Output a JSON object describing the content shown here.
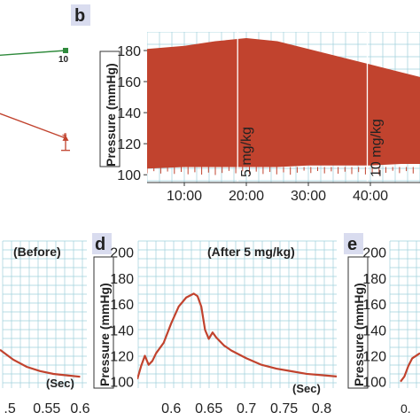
{
  "colors": {
    "trace": "#c1432e",
    "grid": "#9fd0dc",
    "green_series": "#2f8a3c",
    "badge_bg": "#d9dcef",
    "axis": "#333333"
  },
  "chart_data": [
    {
      "id": "panel-a",
      "type": "line",
      "series": [
        {
          "color": "#2f8a3c",
          "x": [
            0,
            10
          ],
          "y": [
            0.95,
            1.0
          ]
        },
        {
          "color": "#c1432e",
          "x": [
            0,
            10
          ],
          "y": [
            0.4,
            0.14
          ],
          "errbar": {
            "x": 10,
            "low": 0.02,
            "high": 0.19
          }
        }
      ],
      "tick_labels": [
        "10"
      ],
      "annotations": [
        "*"
      ]
    },
    {
      "id": "panel-b",
      "type": "area",
      "panel_label": "b",
      "ylabel": "Pressure (mmHg)",
      "yticks": [
        100,
        120,
        140,
        160,
        180
      ],
      "ylim": [
        95,
        192
      ],
      "xticks": [
        "10:00",
        "20:00",
        "30:00",
        "40:00"
      ],
      "xlim_min": [
        4,
        48
      ],
      "xtick_min": [
        10,
        20,
        30,
        40
      ],
      "upper_envelope": [
        [
          4,
          181
        ],
        [
          10,
          183
        ],
        [
          15,
          186
        ],
        [
          20,
          188
        ],
        [
          25,
          186
        ],
        [
          30,
          181
        ],
        [
          35,
          176
        ],
        [
          40,
          171
        ],
        [
          45,
          166
        ],
        [
          48,
          163
        ]
      ],
      "lower_envelope": [
        [
          4,
          104
        ],
        [
          10,
          105
        ],
        [
          15,
          105
        ],
        [
          20,
          105
        ],
        [
          25,
          105
        ],
        [
          30,
          106
        ],
        [
          35,
          106
        ],
        [
          40,
          106
        ],
        [
          45,
          107
        ],
        [
          48,
          107
        ]
      ],
      "markers": [
        {
          "x": 18.6,
          "label": "5 mg/kg"
        },
        {
          "x": 39.5,
          "label": "10 mg/kg"
        }
      ]
    },
    {
      "id": "panel-c",
      "type": "line",
      "annotation": "(Before)",
      "xunit": "(Sec)",
      "xticks": [
        ".5",
        "0.55",
        "0.6"
      ],
      "x": [
        0.48,
        0.5,
        0.52,
        0.54,
        0.56,
        0.58,
        0.6
      ],
      "y": [
        122,
        115,
        110,
        107,
        105,
        104,
        103
      ],
      "ylim": [
        95,
        200
      ],
      "xlim": [
        0.48,
        0.61
      ]
    },
    {
      "id": "panel-d",
      "type": "line",
      "panel_label": "d",
      "annotation": "(After 5 mg/kg)",
      "ylabel": "Pressure (mmHg)",
      "yticks": [
        100,
        120,
        140,
        160,
        180,
        200
      ],
      "ylim": [
        95,
        210
      ],
      "xticks": [
        "0.6",
        "0.65",
        "0.7",
        "0.75",
        "0.8"
      ],
      "xtick_values": [
        0.6,
        0.65,
        0.7,
        0.75,
        0.8
      ],
      "xlim": [
        0.555,
        0.82
      ],
      "xunit": "(Sec)",
      "x": [
        0.555,
        0.56,
        0.565,
        0.57,
        0.575,
        0.58,
        0.59,
        0.6,
        0.61,
        0.62,
        0.63,
        0.635,
        0.64,
        0.645,
        0.65,
        0.655,
        0.66,
        0.67,
        0.68,
        0.7,
        0.72,
        0.74,
        0.76,
        0.78,
        0.8,
        0.82
      ],
      "y": [
        102,
        112,
        120,
        113,
        116,
        122,
        130,
        145,
        158,
        165,
        168,
        166,
        158,
        140,
        133,
        138,
        134,
        128,
        124,
        118,
        113,
        110,
        108,
        106,
        105,
        104
      ]
    },
    {
      "id": "panel-e",
      "type": "line",
      "panel_label": "e",
      "ylabel": "Pressure (mmHg)",
      "yticks": [
        100,
        120,
        140,
        160,
        180,
        200
      ],
      "ylim": [
        95,
        210
      ],
      "xticks": [
        "0."
      ],
      "x": [
        0.0,
        0.2,
        0.4,
        0.6,
        1.0
      ],
      "y": [
        100,
        104,
        112,
        118,
        122
      ]
    }
  ]
}
